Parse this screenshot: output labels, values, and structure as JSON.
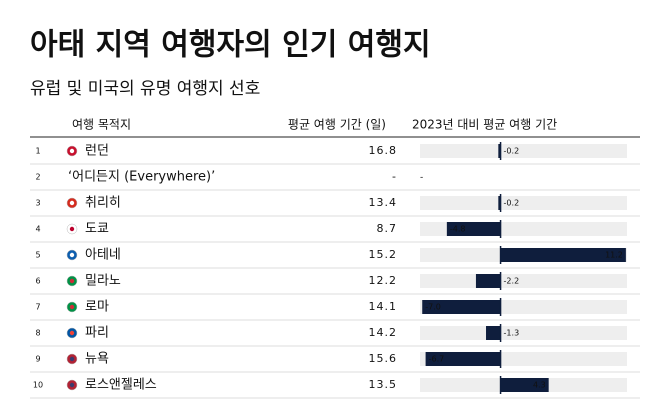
{
  "header": {
    "title": "아태 지역 여행자의 인기 여행지",
    "subtitle": "유럽 및 미국의 유명 여행지 선호"
  },
  "table": {
    "columns": [
      "여행 목적지",
      "평균 여행 기간 (일)",
      "2023년 대비 평균 여행 기간"
    ],
    "xlim": [
      -7.2,
      11.3
    ],
    "rows": [
      {
        "rank": 1,
        "city": "런던",
        "days": 16.8,
        "change": -0.2
      },
      {
        "rank": 2,
        "city": "‘어디든지 (Everywhere)’",
        "days": "-",
        "change": null,
        "change_label": "-"
      },
      {
        "rank": 3,
        "city": "취리히",
        "days": 13.4,
        "change": -0.2
      },
      {
        "rank": 4,
        "city": "도쿄",
        "days": 8.7,
        "change": -4.8
      },
      {
        "rank": 5,
        "city": "아테네",
        "days": 15.2,
        "change": 11.2
      },
      {
        "rank": 6,
        "city": "밀라노",
        "days": 12.2,
        "change": -2.2
      },
      {
        "rank": 7,
        "city": "로마",
        "days": 14.1,
        "change": -7.0,
        "change_label": "-7.0"
      },
      {
        "rank": 8,
        "city": "파리",
        "days": 14.2,
        "change": -1.3
      },
      {
        "rank": 9,
        "city": "뉴욕",
        "days": 15.6,
        "change": -6.7
      },
      {
        "rank": 10,
        "city": "로스앤젤레스",
        "days": 13.5,
        "change": 4.3
      }
    ]
  }
}
